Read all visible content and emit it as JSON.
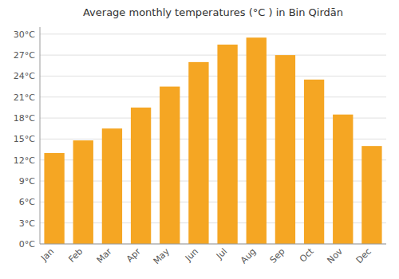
{
  "chart_data": {
    "type": "bar",
    "title": "Average monthly temperatures (°C ) in Bin Qirdān",
    "categories": [
      "Jan",
      "Feb",
      "Mar",
      "Apr",
      "May",
      "Jun",
      "Jul",
      "Aug",
      "Sep",
      "Oct",
      "Nov",
      "Dec"
    ],
    "values": [
      13.0,
      14.8,
      16.5,
      19.5,
      22.5,
      26.0,
      28.5,
      29.5,
      27.0,
      23.5,
      18.5,
      14.0
    ],
    "color": "#F5A623",
    "ylim": [
      0,
      31
    ],
    "yticks": [
      {
        "value": 0,
        "label": "0°C"
      },
      {
        "value": 3,
        "label": "3°C"
      },
      {
        "value": 6,
        "label": "6°C"
      },
      {
        "value": 9,
        "label": "9°C"
      },
      {
        "value": 12,
        "label": "12°C"
      },
      {
        "value": 15,
        "label": "15°C"
      },
      {
        "value": 18,
        "label": "18°C"
      },
      {
        "value": 21,
        "label": "21°C"
      },
      {
        "value": 24,
        "label": "24°C"
      },
      {
        "value": 27,
        "label": "27°C"
      },
      {
        "value": 30,
        "label": "30°C"
      }
    ],
    "grid": true
  }
}
